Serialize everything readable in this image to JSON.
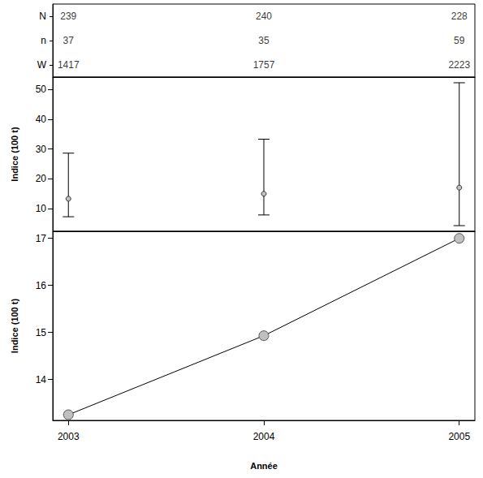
{
  "chart_data": [
    {
      "type": "table",
      "x": [
        2003,
        2004,
        2005
      ],
      "rows": [
        "N",
        "n",
        "W"
      ],
      "values": [
        [
          239,
          240,
          228
        ],
        [
          37,
          35,
          59
        ],
        [
          1417,
          1757,
          2223
        ]
      ],
      "xlim": [
        2002.92,
        2005.08
      ],
      "tick_labels": "y"
    },
    {
      "type": "errorbar",
      "x": [
        2003,
        2004,
        2005
      ],
      "values": [
        13.25,
        14.93,
        17.0
      ],
      "lower": [
        7.2,
        7.8,
        4.2
      ],
      "upper": [
        28.6,
        33.3,
        52.3
      ],
      "ylabel": "Indice (100 t)",
      "xlim": [
        2002.92,
        2005.08
      ],
      "ylim": [
        2.3,
        54.2
      ],
      "yticks": [
        10,
        20,
        30,
        40,
        50
      ],
      "tick_labels": "y",
      "color": "#c0c0c0",
      "marker": "circle"
    },
    {
      "type": "line",
      "x": [
        2003,
        2004,
        2005
      ],
      "values": [
        13.25,
        14.93,
        17.0
      ],
      "xlabel": "Année",
      "ylabel": "Indice (100 t)",
      "xlim": [
        2002.92,
        2005.08
      ],
      "xticks": [
        2003,
        2004,
        2005
      ],
      "ylim": [
        13.13,
        17.15
      ],
      "yticks": [
        14,
        15,
        16,
        17
      ],
      "color": "#c0c0c0",
      "marker": "circle"
    }
  ]
}
